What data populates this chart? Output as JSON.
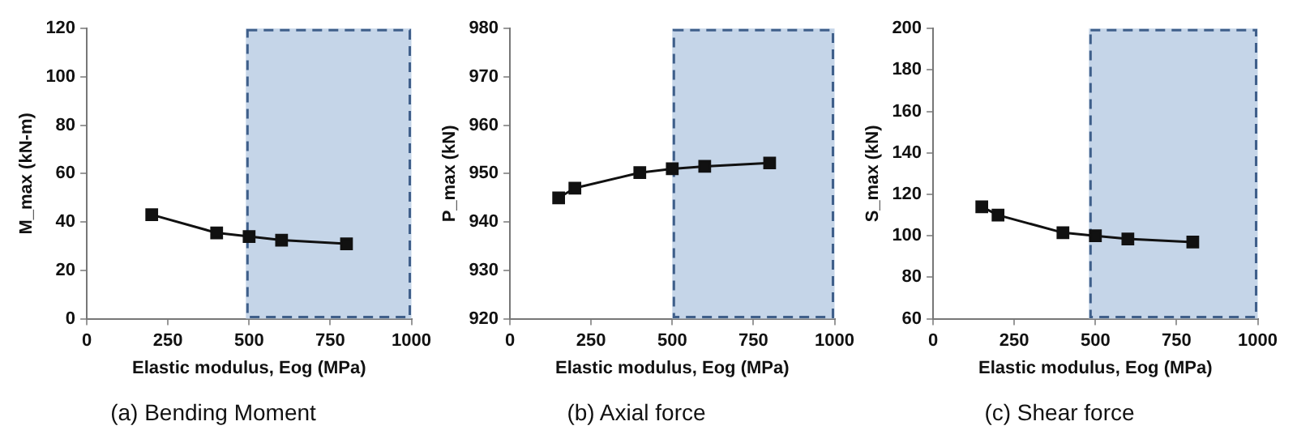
{
  "chart_data": [
    {
      "type": "line",
      "title": "(a) Bending Moment",
      "xlabel": "Elastic modulus, Eog (MPa)",
      "ylabel": "M_max (kN-m)",
      "x": [
        200,
        400,
        500,
        600,
        800
      ],
      "series": [
        {
          "color": "#111111",
          "values": [
            43,
            35.5,
            34,
            32.5,
            31
          ]
        }
      ],
      "xlim": [
        0,
        1000
      ],
      "xticks": [
        0,
        250,
        500,
        750,
        1000
      ],
      "ylim": [
        0,
        120
      ],
      "yticks": [
        0,
        20,
        40,
        60,
        80,
        100,
        120
      ],
      "marker": "square",
      "line_style": "solid",
      "grid": false,
      "legend": false,
      "bands": [
        {
          "axis": "x",
          "from": 490,
          "to": 1000,
          "color": "#c5d5e8"
        }
      ]
    },
    {
      "type": "line",
      "title": "(b) Axial force",
      "xlabel": "Elastic modulus, Eog (MPa)",
      "ylabel": "P_max (kN)",
      "x": [
        150,
        200,
        400,
        500,
        600,
        800
      ],
      "series": [
        {
          "color": "#111111",
          "values": [
            945,
            947,
            950.2,
            951,
            951.5,
            952.2
          ]
        }
      ],
      "xlim": [
        0,
        1000
      ],
      "xticks": [
        0,
        250,
        500,
        750,
        1000
      ],
      "ylim": [
        920,
        980
      ],
      "yticks": [
        920,
        930,
        940,
        950,
        960,
        970,
        980
      ],
      "marker": "square",
      "line_style": "solid",
      "grid": false,
      "legend": false,
      "bands": [
        {
          "axis": "x",
          "from": 500,
          "to": 1000,
          "color": "#c5d5e8"
        }
      ]
    },
    {
      "type": "line",
      "title": "(c) Shear force",
      "xlabel": "Elastic modulus, Eog (MPa)",
      "ylabel": "S_max (kN)",
      "x": [
        150,
        200,
        400,
        500,
        600,
        800
      ],
      "series": [
        {
          "color": "#111111",
          "values": [
            114,
            110,
            101.5,
            100,
            98.5,
            97
          ]
        }
      ],
      "xlim": [
        0,
        1000
      ],
      "xticks": [
        0,
        250,
        500,
        750,
        1000
      ],
      "ylim": [
        60,
        200
      ],
      "yticks": [
        60,
        80,
        100,
        120,
        140,
        160,
        180,
        200
      ],
      "marker": "square",
      "line_style": "solid",
      "grid": false,
      "legend": false,
      "bands": [
        {
          "axis": "x",
          "from": 480,
          "to": 1000,
          "color": "#c5d5e8"
        }
      ]
    }
  ]
}
